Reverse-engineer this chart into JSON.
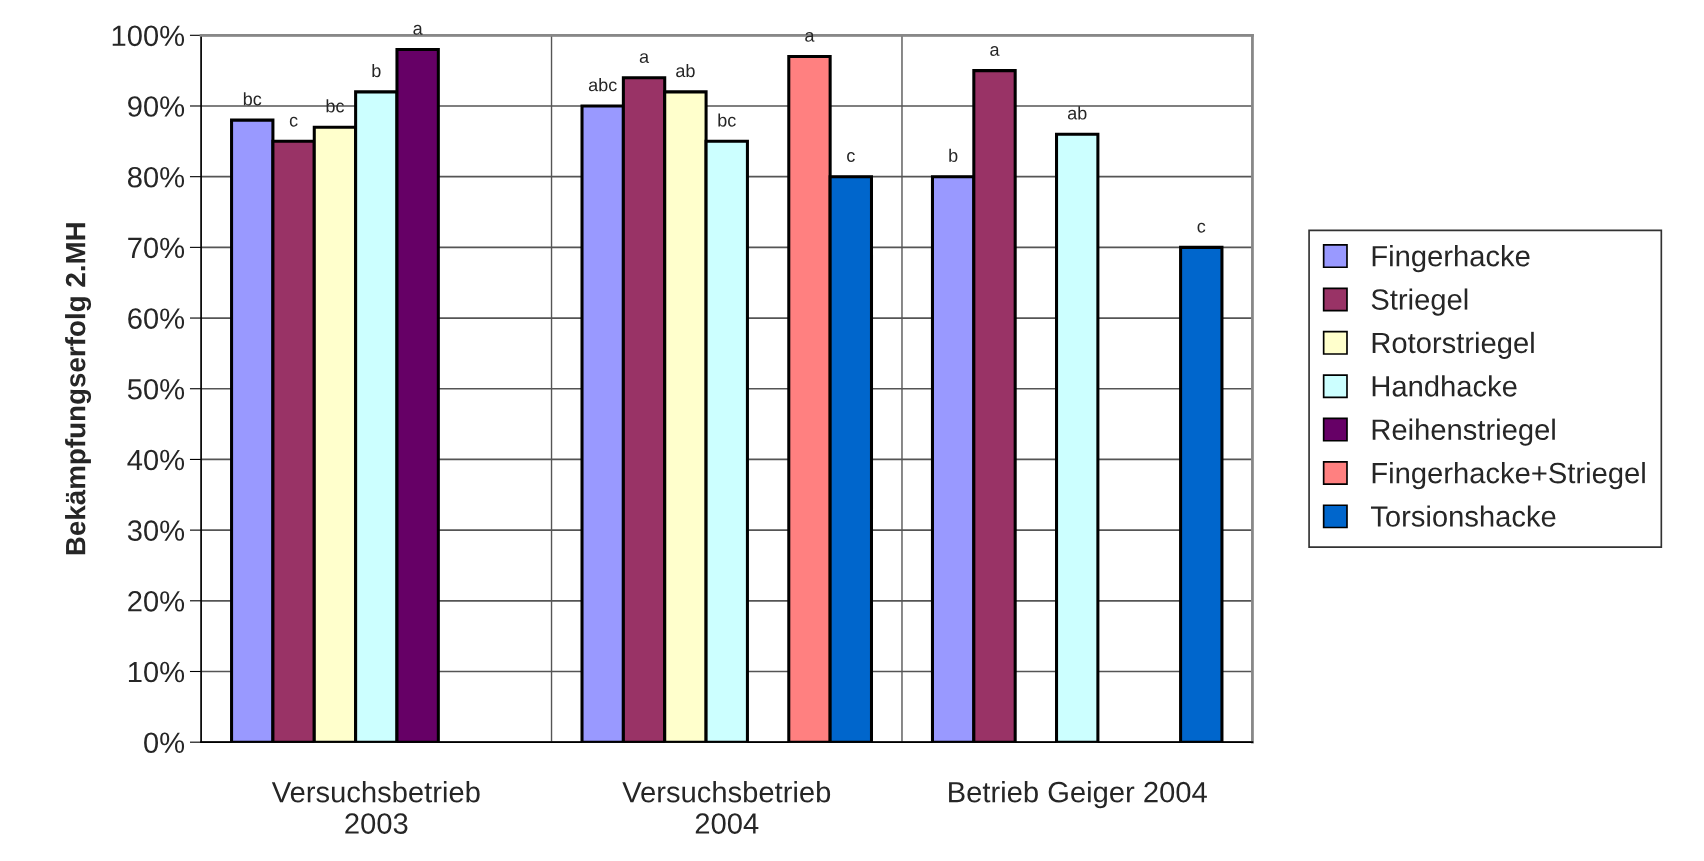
{
  "chart_data": {
    "type": "bar",
    "ylabel": "Bekämpfungserfolg 2.MH",
    "categories": [
      "Versuchsbetrieb\n2003",
      "Versuchsbetrieb\n2004",
      "Betrieb Geiger 2004"
    ],
    "series": [
      {
        "name": "Fingerhacke",
        "color": "#9999ff",
        "values": [
          88,
          90,
          80
        ],
        "value_labels": [
          "bc",
          "abc",
          "b"
        ]
      },
      {
        "name": "Striegel",
        "color": "#993366",
        "values": [
          85,
          94,
          95
        ],
        "value_labels": [
          "c",
          "a",
          "a"
        ]
      },
      {
        "name": "Rotorstriegel",
        "color": "#ffffcc",
        "values": [
          87,
          92,
          null
        ],
        "value_labels": [
          "bc",
          "ab",
          null
        ]
      },
      {
        "name": "Handhacke",
        "color": "#ccffff",
        "values": [
          92,
          85,
          86
        ],
        "value_labels": [
          "b",
          "bc",
          "ab"
        ]
      },
      {
        "name": "Reihenstriegel",
        "color": "#660066",
        "values": [
          98,
          null,
          null
        ],
        "value_labels": [
          "a",
          null,
          null
        ]
      },
      {
        "name": "Fingerhacke+Striegel",
        "color": "#ff8080",
        "values": [
          null,
          97,
          null
        ],
        "value_labels": [
          null,
          "a",
          null
        ]
      },
      {
        "name": "Torsionshacke",
        "color": "#0066cc",
        "values": [
          null,
          80,
          70
        ],
        "value_labels": [
          null,
          "c",
          "c"
        ]
      }
    ],
    "ylim": [
      0,
      100
    ],
    "yticks": [
      {
        "value": 0,
        "label": "0%"
      },
      {
        "value": 10,
        "label": "10%"
      },
      {
        "value": 20,
        "label": "20%"
      },
      {
        "value": 30,
        "label": "30%"
      },
      {
        "value": 40,
        "label": "40%"
      },
      {
        "value": 50,
        "label": "50%"
      },
      {
        "value": 60,
        "label": "60%"
      },
      {
        "value": 70,
        "label": "70%"
      },
      {
        "value": 80,
        "label": "80%"
      },
      {
        "value": 90,
        "label": "90%"
      },
      {
        "value": 100,
        "label": "100%"
      }
    ],
    "grid": true,
    "legend": "right"
  }
}
